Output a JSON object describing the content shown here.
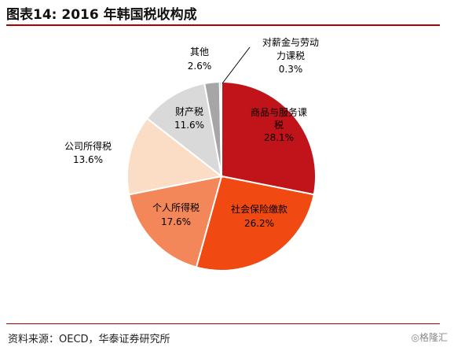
{
  "title": "图表14:  2016 年韩国税收构成",
  "source": "资料来源：OECD，华泰证券研究所",
  "watermark": "◎格隆汇",
  "chart_data": {
    "type": "pie",
    "title": "",
    "slices": [
      {
        "lines": [
          "商品与服务课",
          "税"
        ],
        "pct": "28.1%",
        "value": 28.1,
        "color": "#c0141a",
        "label_color": "#000000"
      },
      {
        "lines": [
          "社会保险缴款"
        ],
        "pct": "26.2%",
        "value": 26.2,
        "color": "#f04a12",
        "label_color": "#000000"
      },
      {
        "lines": [
          "个人所得税"
        ],
        "pct": "17.6%",
        "value": 17.6,
        "color": "#f4875a",
        "label_color": "#000000"
      },
      {
        "lines": [
          "公司所得税"
        ],
        "pct": "13.6%",
        "value": 13.6,
        "color": "#fbdcc4",
        "label_color": "#000000"
      },
      {
        "lines": [
          "财产税"
        ],
        "pct": "11.6%",
        "value": 11.6,
        "color": "#d9d9d9",
        "label_color": "#000000"
      },
      {
        "lines": [
          "其他"
        ],
        "pct": "2.6%",
        "value": 2.6,
        "color": "#a6a6a6",
        "label_color": "#000000"
      },
      {
        "lines": [
          "对薪金与劳动",
          "力课税"
        ],
        "pct": "0.3%",
        "value": 0.3,
        "color": "#505050",
        "label_color": "#000000"
      }
    ]
  }
}
